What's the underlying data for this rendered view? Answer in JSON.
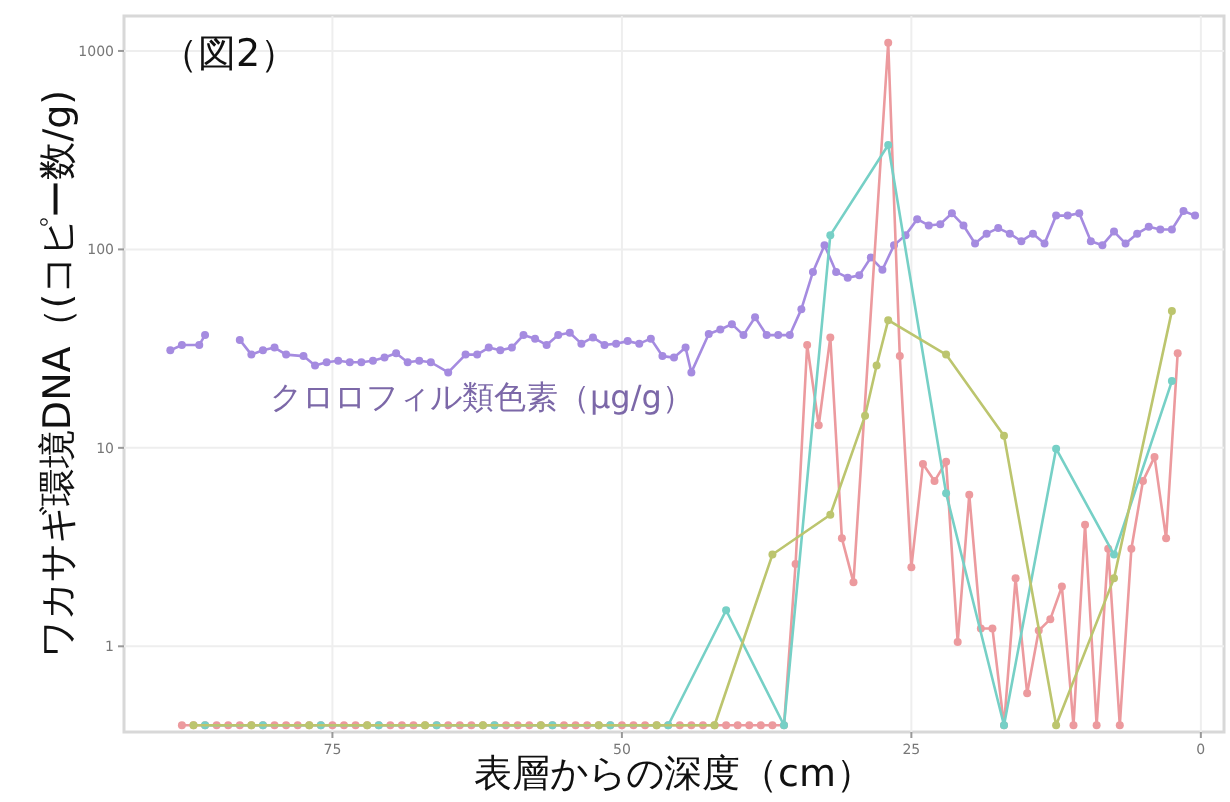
{
  "chart_data": {
    "type": "line",
    "title": "（図2）",
    "xlabel": "表層からの深度（cm）",
    "ylabel": "ワカサギ環境DNA（(コピー数/g)",
    "log": "y",
    "grid": true,
    "marker": "circle",
    "line_style": "solid",
    "xlim": [
      93,
      -2
    ],
    "xticks": [
      75,
      50,
      25,
      0
    ],
    "ylim": [
      0.37,
      1500
    ],
    "yticks": [
      1,
      10,
      100,
      1000
    ],
    "series": [
      {
        "name": "クロロフィル類色素（μg/g）",
        "color": "#a58be0",
        "x": [
          89,
          88,
          86.5,
          86,
          84.5,
          83,
          82,
          81,
          80,
          79,
          77.5,
          76.5,
          75.5,
          74.5,
          73.5,
          72.5,
          71.5,
          70.5,
          69.5,
          68.5,
          67.5,
          66.5,
          65,
          63.5,
          62.5,
          61.5,
          60.5,
          59.5,
          58.5,
          57.5,
          56.5,
          55.5,
          54.5,
          53.5,
          52.5,
          51.5,
          50.5,
          49.5,
          48.5,
          47.5,
          46.5,
          45.5,
          44.5,
          44,
          42.5,
          41.5,
          40.5,
          39.5,
          38.5,
          37.5,
          36.5,
          35.5,
          34.5,
          33.5,
          32.5,
          31.5,
          30.5,
          29.5,
          28.5,
          27.5,
          26.5,
          25.5,
          24.5,
          23.5,
          22.5,
          21.5,
          20.5,
          19.5,
          18.5,
          17.5,
          16.5,
          15.5,
          14.5,
          13.5,
          12.5,
          11.5,
          10.5,
          9.5,
          8.5,
          7.5,
          6.5,
          5.5,
          4.5,
          3.5,
          2.5,
          1.5,
          0.5
        ],
        "values": [
          31,
          33,
          33,
          37,
          null,
          35,
          29.5,
          31,
          32,
          29.5,
          29,
          26,
          27,
          27.5,
          27,
          27,
          27.5,
          28.5,
          30,
          27,
          27.5,
          27,
          24,
          29.5,
          29.5,
          32,
          31,
          32,
          37,
          35.5,
          33,
          37,
          38,
          33.5,
          36,
          33,
          33.5,
          34.5,
          33.5,
          35.5,
          29,
          28.5,
          32,
          24,
          37.5,
          39.5,
          42,
          37,
          45.5,
          37,
          37,
          37,
          50,
          77,
          105,
          77,
          72,
          74,
          91,
          79,
          105,
          118,
          142,
          132,
          134,
          152,
          132,
          107,
          120,
          128,
          120,
          110,
          120,
          107,
          148,
          148,
          152,
          110,
          105,
          123,
          107,
          120,
          130,
          126,
          126,
          156,
          148
        ]
      },
      {
        "color": "#ec9a9e",
        "x": [
          88,
          87,
          86,
          85,
          84,
          83,
          82,
          81,
          80,
          79,
          78,
          77,
          76,
          75,
          74,
          73,
          72,
          71,
          70,
          69,
          68,
          67,
          66,
          65,
          64,
          63,
          62,
          61,
          60,
          59,
          58,
          57,
          56,
          55,
          54,
          53,
          52,
          51,
          50,
          49,
          48,
          47,
          46,
          45,
          44,
          43,
          42,
          41,
          40,
          39,
          38,
          37,
          36,
          35,
          34,
          33,
          32,
          31,
          30,
          27,
          26,
          25,
          24,
          23,
          22,
          21,
          20,
          19,
          18,
          17,
          16,
          15,
          14,
          13,
          12,
          11,
          10,
          9,
          8,
          7,
          6,
          5,
          4,
          3,
          2
        ],
        "values": [
          0.4,
          0.4,
          0.4,
          0.4,
          0.4,
          0.4,
          0.4,
          0.4,
          0.4,
          0.4,
          0.4,
          0.4,
          0.4,
          0.4,
          0.4,
          0.4,
          0.4,
          0.4,
          0.4,
          0.4,
          0.4,
          0.4,
          0.4,
          0.4,
          0.4,
          0.4,
          0.4,
          0.4,
          0.4,
          0.4,
          0.4,
          0.4,
          0.4,
          0.4,
          0.4,
          0.4,
          0.4,
          0.4,
          0.4,
          0.4,
          0.4,
          0.4,
          0.4,
          0.4,
          0.4,
          0.4,
          0.4,
          0.4,
          0.4,
          0.4,
          0.4,
          0.4,
          0.4,
          2.6,
          33,
          13,
          36,
          3.5,
          2.1,
          1100,
          29,
          2.5,
          8.3,
          6.8,
          8.5,
          1.05,
          5.8,
          1.23,
          1.23,
          0.4,
          2.2,
          0.58,
          1.2,
          1.37,
          2,
          0.4,
          4.1,
          0.4,
          3.1,
          0.4,
          3.1,
          6.8,
          9,
          3.5,
          30
        ]
      },
      {
        "color": "#76d0c6",
        "x": [
          86,
          81,
          76,
          71,
          66,
          61,
          56,
          51,
          46,
          41,
          36,
          32,
          27,
          22,
          17,
          12.5,
          7.5,
          2.5
        ],
        "values": [
          0.4,
          0.4,
          0.4,
          0.4,
          0.4,
          0.4,
          0.4,
          0.4,
          0.4,
          1.52,
          0.4,
          118,
          336,
          5.9,
          0.4,
          9.9,
          2.9,
          21.7
        ]
      },
      {
        "color": "#bcc56e",
        "x": [
          87,
          82,
          77,
          72,
          67,
          62,
          57,
          52,
          47,
          42,
          37,
          32,
          29,
          28,
          27,
          22,
          17,
          12.5,
          7.5,
          2.5
        ],
        "values": [
          0.4,
          0.4,
          0.4,
          0.4,
          0.4,
          0.4,
          0.4,
          0.4,
          0.4,
          0.4,
          2.9,
          4.6,
          14.5,
          26,
          44,
          29.5,
          11.5,
          0.4,
          2.2,
          49
        ]
      }
    ]
  }
}
